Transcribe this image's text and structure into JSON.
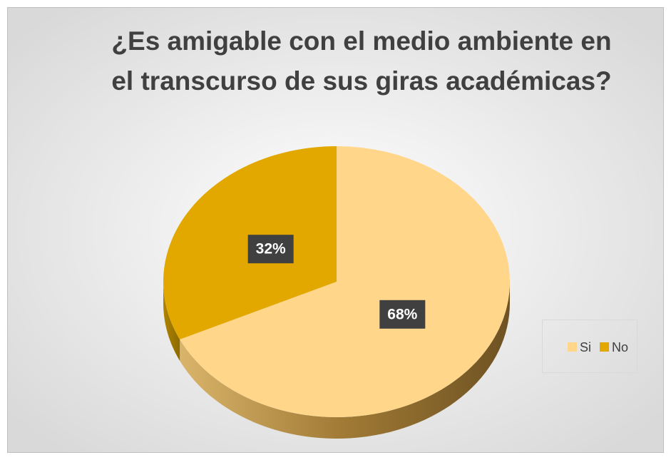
{
  "chart_data": {
    "type": "pie3d",
    "title": "¿Es amigable con el medio ambiente en el transcurso de sus giras académicas?",
    "categories": [
      "Si",
      "No"
    ],
    "values": [
      68,
      32
    ],
    "value_labels": [
      "68%",
      "32%"
    ],
    "colors": [
      "#ffd68a",
      "#e2a800"
    ],
    "legend": "right"
  }
}
